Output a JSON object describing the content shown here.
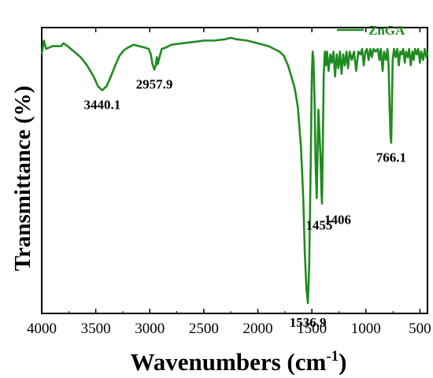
{
  "chart_data": {
    "type": "line",
    "title": "",
    "xlabel": "Wavenumbers (cm",
    "xlabel_sup": "-1",
    "xlabel_close": ")",
    "ylabel": "Transmittance (%)",
    "xlim": [
      4000,
      430
    ],
    "x_reversed": true,
    "ylim": [
      0,
      100
    ],
    "y_ticks_shown": false,
    "grid": false,
    "legend_position": "top-right",
    "x_ticks": [
      "4000",
      "3500",
      "3000",
      "2500",
      "2000",
      "1500",
      "1000",
      "500"
    ],
    "x_tick_values": [
      4000,
      3500,
      3000,
      2500,
      2000,
      1500,
      1000,
      500
    ],
    "series": [
      {
        "name": "ZnGA",
        "color": "#1f8b1f",
        "points": [
          [
            4000,
            92
          ],
          [
            3980,
            97
          ],
          [
            3960,
            94
          ],
          [
            3900,
            95
          ],
          [
            3820,
            95
          ],
          [
            3800,
            96
          ],
          [
            3760,
            95
          ],
          [
            3700,
            93
          ],
          [
            3640,
            91
          ],
          [
            3580,
            88
          ],
          [
            3520,
            84
          ],
          [
            3480,
            80.5
          ],
          [
            3440.1,
            79
          ],
          [
            3400,
            80.5
          ],
          [
            3360,
            84
          ],
          [
            3320,
            88
          ],
          [
            3280,
            91.5
          ],
          [
            3240,
            93.5
          ],
          [
            3200,
            94.5
          ],
          [
            3150,
            95.5
          ],
          [
            3100,
            95
          ],
          [
            3050,
            94.5
          ],
          [
            3010,
            94
          ],
          [
            2990,
            92
          ],
          [
            2975,
            88.5
          ],
          [
            2957.9,
            86.5
          ],
          [
            2945,
            88
          ],
          [
            2935,
            91
          ],
          [
            2925,
            88.5
          ],
          [
            2910,
            91
          ],
          [
            2890,
            94
          ],
          [
            2850,
            94.5
          ],
          [
            2800,
            95.5
          ],
          [
            2700,
            96
          ],
          [
            2600,
            96.5
          ],
          [
            2500,
            97
          ],
          [
            2400,
            97
          ],
          [
            2300,
            97.5
          ],
          [
            2250,
            98
          ],
          [
            2200,
            97.5
          ],
          [
            2100,
            97
          ],
          [
            2000,
            96
          ],
          [
            1900,
            95
          ],
          [
            1850,
            94
          ],
          [
            1800,
            93
          ],
          [
            1760,
            91.5
          ],
          [
            1720,
            88
          ],
          [
            1690,
            84
          ],
          [
            1660,
            80
          ],
          [
            1630,
            73
          ],
          [
            1600,
            58
          ],
          [
            1580,
            40
          ],
          [
            1565,
            20
          ],
          [
            1550,
            7
          ],
          [
            1536.9,
            2
          ],
          [
            1525,
            15
          ],
          [
            1510,
            55
          ],
          [
            1500,
            85
          ],
          [
            1492,
            93
          ],
          [
            1485,
            90
          ],
          [
            1475,
            75
          ],
          [
            1465,
            52
          ],
          [
            1455,
            40
          ],
          [
            1448,
            55
          ],
          [
            1440,
            72
          ],
          [
            1430,
            64
          ],
          [
            1420,
            55
          ],
          [
            1412,
            43
          ],
          [
            1406,
            38
          ],
          [
            1398,
            60
          ],
          [
            1390,
            85
          ],
          [
            1380,
            93
          ],
          [
            1370,
            88
          ],
          [
            1360,
            93
          ],
          [
            1345,
            86
          ],
          [
            1330,
            92
          ],
          [
            1315,
            89
          ],
          [
            1300,
            93
          ],
          [
            1285,
            84
          ],
          [
            1270,
            92
          ],
          [
            1255,
            87
          ],
          [
            1240,
            93
          ],
          [
            1225,
            85
          ],
          [
            1210,
            92
          ],
          [
            1195,
            88
          ],
          [
            1180,
            93
          ],
          [
            1165,
            87
          ],
          [
            1150,
            93
          ],
          [
            1130,
            90
          ],
          [
            1110,
            93
          ],
          [
            1090,
            86
          ],
          [
            1070,
            93
          ],
          [
            1050,
            92
          ],
          [
            1035,
            94
          ],
          [
            1020,
            88
          ],
          [
            1005,
            93
          ],
          [
            990,
            94
          ],
          [
            975,
            90
          ],
          [
            960,
            94
          ],
          [
            945,
            91
          ],
          [
            930,
            94
          ],
          [
            910,
            93
          ],
          [
            890,
            94
          ],
          [
            875,
            90
          ],
          [
            862,
            94
          ],
          [
            845,
            86
          ],
          [
            832,
            93
          ],
          [
            815,
            90
          ],
          [
            800,
            94
          ],
          [
            790,
            88
          ],
          [
            780,
            72
          ],
          [
            772,
            62
          ],
          [
            766.1,
            60
          ],
          [
            760,
            72
          ],
          [
            752,
            90
          ],
          [
            740,
            94
          ],
          [
            725,
            91
          ],
          [
            710,
            94
          ],
          [
            695,
            88
          ],
          [
            682,
            93
          ],
          [
            668,
            92
          ],
          [
            655,
            94
          ],
          [
            640,
            89
          ],
          [
            628,
            93
          ],
          [
            612,
            91
          ],
          [
            600,
            94
          ],
          [
            585,
            88
          ],
          [
            570,
            93
          ],
          [
            558,
            90
          ],
          [
            545,
            94
          ],
          [
            530,
            92
          ],
          [
            515,
            94
          ],
          [
            500,
            89
          ],
          [
            488,
            93
          ],
          [
            470,
            90
          ],
          [
            455,
            94
          ],
          [
            440,
            91
          ],
          [
            430,
            93
          ]
        ]
      }
    ],
    "annotations": [
      {
        "text": "3440.1",
        "x": 3440.1,
        "y": 79,
        "placement": "below"
      },
      {
        "text": "2957.9",
        "x": 2957.9,
        "y": 86.5,
        "placement": "below"
      },
      {
        "text": "766.1",
        "x": 766.1,
        "y": 60,
        "placement": "below"
      },
      {
        "text": "1406",
        "x": 1406,
        "y": 38,
        "placement": "below-right"
      },
      {
        "text": "1455",
        "x": 1455,
        "y": 40,
        "placement": "below-right-far"
      },
      {
        "text": "1536.9",
        "x": 1536.9,
        "y": 2,
        "placement": "below"
      }
    ]
  }
}
